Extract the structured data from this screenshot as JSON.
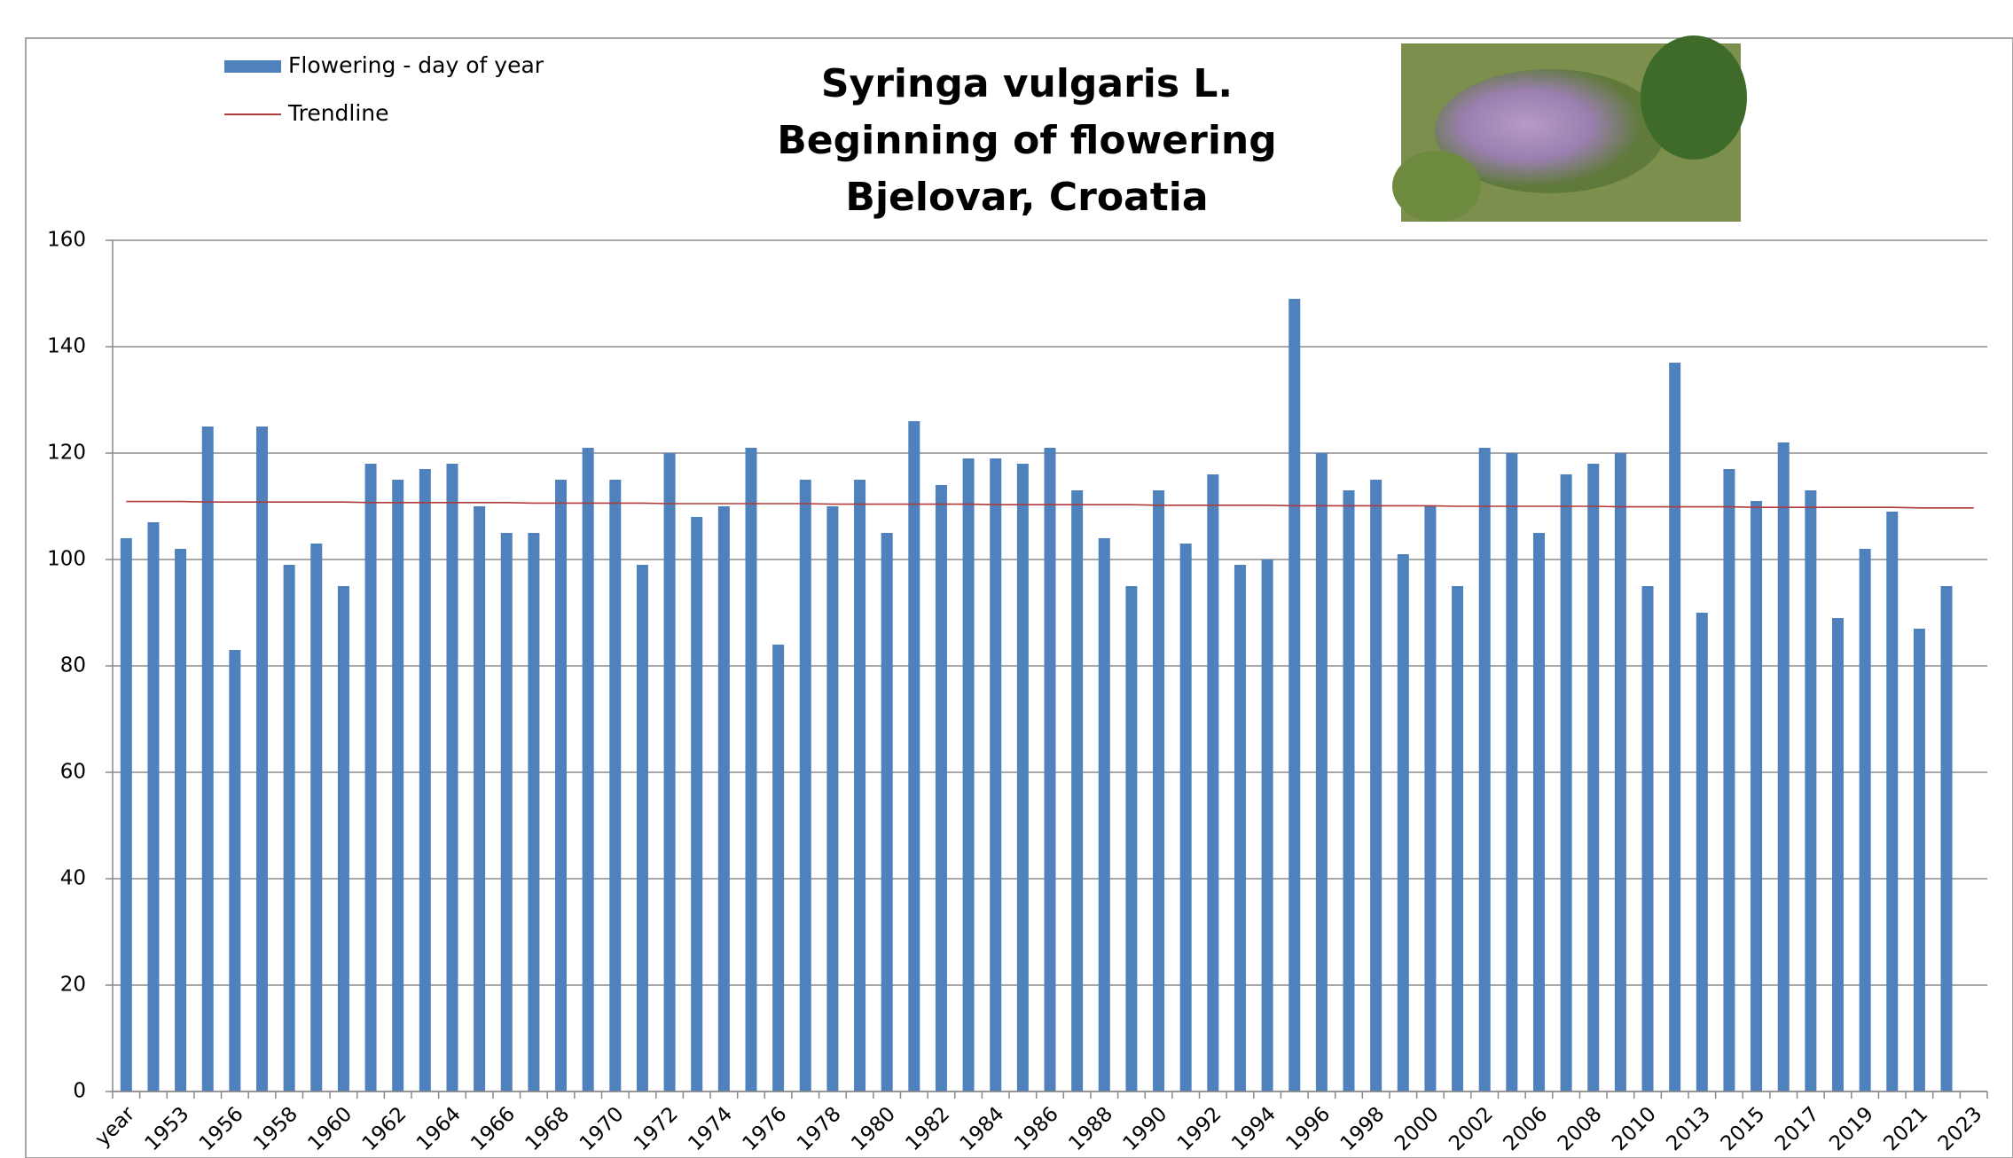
{
  "chart_data": {
    "type": "bar",
    "title": [
      "Syringa vulgaris L.",
      "Beginning of flowering",
      "Bjelovar, Croatia"
    ],
    "categories": [
      "year",
      null,
      "1953",
      null,
      "1956",
      null,
      "1958",
      null,
      "1960",
      null,
      "1962",
      null,
      "1964",
      null,
      "1966",
      null,
      "1968",
      null,
      "1970",
      null,
      "1972",
      null,
      "1974",
      null,
      "1976",
      null,
      "1978",
      null,
      "1980",
      null,
      "1982",
      null,
      "1984",
      null,
      "1986",
      null,
      "1988",
      null,
      "1990",
      null,
      "1992",
      null,
      "1994",
      null,
      "1996",
      null,
      "1998",
      null,
      "2000",
      null,
      "2002",
      null,
      "2006",
      null,
      "2008",
      null,
      "2010",
      null,
      "2013",
      null,
      "2015",
      null,
      "2017",
      null,
      "2019",
      null,
      "2021",
      null,
      "2023"
    ],
    "series": [
      {
        "name": "Flowering - day of year",
        "color": "#4f81bd",
        "values": [
          104,
          107,
          102,
          125,
          83,
          125,
          99,
          103,
          95,
          118,
          115,
          117,
          118,
          110,
          105,
          105,
          115,
          121,
          115,
          99,
          120,
          108,
          110,
          121,
          84,
          115,
          110,
          115,
          105,
          126,
          114,
          119,
          119,
          118,
          121,
          113,
          104,
          95,
          113,
          103,
          116,
          99,
          100,
          149,
          120,
          113,
          115,
          101,
          110,
          95,
          121,
          120,
          105,
          116,
          118,
          120,
          95,
          137,
          90,
          117,
          111,
          122,
          113,
          89,
          102,
          109,
          87,
          95,
          null
        ]
      },
      {
        "name": "Trendline",
        "color": "#b03a3a",
        "type": "line",
        "values": [
          110.9,
          110.9,
          110.9,
          110.8,
          110.8,
          110.8,
          110.8,
          110.8,
          110.8,
          110.7,
          110.7,
          110.7,
          110.7,
          110.7,
          110.7,
          110.6,
          110.6,
          110.6,
          110.6,
          110.6,
          110.5,
          110.5,
          110.5,
          110.5,
          110.5,
          110.5,
          110.4,
          110.4,
          110.4,
          110.4,
          110.4,
          110.4,
          110.3,
          110.3,
          110.3,
          110.3,
          110.3,
          110.3,
          110.2,
          110.2,
          110.2,
          110.2,
          110.2,
          110.1,
          110.1,
          110.1,
          110.1,
          110.1,
          110.1,
          110.0,
          110.0,
          110.0,
          110.0,
          110.0,
          110.0,
          109.9,
          109.9,
          109.9,
          109.9,
          109.9,
          109.8,
          109.8,
          109.8,
          109.8,
          109.8,
          109.8,
          109.7,
          109.7,
          109.7
        ]
      }
    ],
    "ylim": [
      0,
      160
    ],
    "yticks": [
      0,
      20,
      40,
      60,
      80,
      100,
      120,
      140,
      160
    ],
    "grid": true
  }
}
